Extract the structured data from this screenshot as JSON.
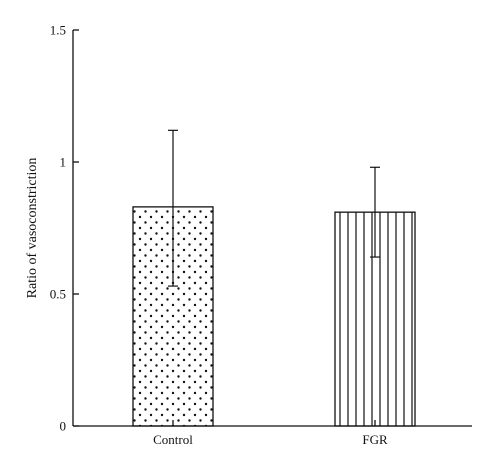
{
  "chart_data": {
    "type": "bar",
    "title": "",
    "xlabel": "",
    "ylabel": "Ratio of vasoconstriction",
    "ylim": [
      0,
      1.5
    ],
    "yticks": [
      {
        "value": 0,
        "label": "0"
      },
      {
        "value": 0.5,
        "label": "0.5"
      },
      {
        "value": 1,
        "label": "1"
      },
      {
        "value": 1.5,
        "label": "1.5"
      }
    ],
    "categories": [
      "Control",
      "FGR"
    ],
    "values": [
      0.83,
      0.81
    ],
    "error_upper": [
      1.12,
      0.98
    ],
    "error_lower": [
      0.53,
      0.64
    ],
    "patterns": [
      "dots",
      "vertical-lines"
    ],
    "grid": false,
    "legend": "none",
    "colors": {
      "stroke": "#111111",
      "fill": "#ffffff"
    }
  }
}
